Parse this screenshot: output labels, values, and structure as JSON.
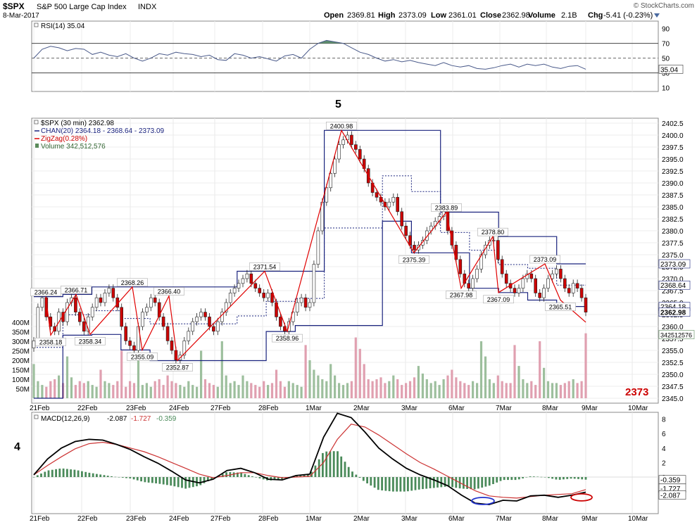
{
  "header": {
    "symbol": "$SPX",
    "name": "S&P 500 Large Cap Index",
    "exchange": "INDX",
    "date": "8-Mar-2017",
    "copyright": "© StockCharts.com",
    "quote": {
      "open_label": "Open",
      "open": "2369.81",
      "high_label": "High",
      "high": "2373.09",
      "low_label": "Low",
      "low": "2361.01",
      "close_label": "Close",
      "close": "2362.98",
      "volume_label": "Volume",
      "volume": "2.1B",
      "chg_label": "Chg",
      "chg": "-5.41 (-0.23%)"
    }
  },
  "colors": {
    "up_candle": "#ffffff",
    "down_candle": "#cc0000",
    "channel": "#1a237e",
    "zigzag": "#e00000",
    "volume_up": "#9dbf9d",
    "volume_down": "#e0a0b0",
    "rsi_line": "#4a5a8a",
    "rsi_fill": "#5f8f6f",
    "macd_line": "#000000",
    "signal_line": "#cc3333",
    "histogram": "#4a8a5a",
    "annotation_red": "#cc0000",
    "annotation_blue": "#2233cc"
  },
  "rsi": {
    "legend": "RSI(14) 35.04",
    "current": "35.04",
    "levels": [
      "90",
      "70",
      "50",
      "30",
      "10"
    ],
    "annotation": "5",
    "values": [
      50,
      62,
      66,
      64,
      60,
      63,
      62,
      55,
      58,
      54,
      52,
      56,
      50,
      46,
      50,
      56,
      54,
      58,
      56,
      55,
      52,
      54,
      48,
      47,
      56,
      54,
      50,
      52,
      49,
      46,
      53,
      55,
      50,
      62,
      70,
      74,
      72,
      70,
      64,
      58,
      55,
      50,
      46,
      48,
      45,
      47,
      44,
      42,
      40,
      44,
      40,
      38,
      40,
      36,
      35,
      37,
      40,
      42,
      38,
      42,
      40,
      42,
      38,
      36,
      39,
      40,
      35.04
    ]
  },
  "price_panel": {
    "legend": {
      "title": "$SPX (30 min) 2362.98",
      "chan": "CHAN(20) 2364.18 - 2368.64 - 2373.09",
      "zigzag": "ZigZag(0.28%)",
      "volume": "Volume 342,512,576"
    },
    "right_labels": {
      "channel_upper": "2373.09",
      "channel_mid": "2368.64",
      "channel_lower": "2364.18",
      "close": "2362.98",
      "volume": "342512576"
    },
    "big_label": "2373",
    "vol_ticks": [
      "400M",
      "350M",
      "300M",
      "250M",
      "200M",
      "150M",
      "100M",
      "50M"
    ]
  },
  "macd": {
    "legend_title": "MACD(12,26,9)",
    "legend_macd": "-2.087",
    "legend_signal": "-1.727",
    "legend_hist": "-0.359",
    "right_labels": [
      "-0.359",
      "-1.727",
      "-2.087"
    ],
    "ticks": [
      "8",
      "6",
      "4",
      "2",
      "0",
      "-2"
    ],
    "annotation": "4"
  },
  "x_labels": [
    "21Feb",
    "22Feb",
    "23Feb",
    "24Feb",
    "27Feb",
    "28Feb",
    "1Mar",
    "2Mar",
    "3Mar",
    "6Mar",
    "7Mar",
    "8Mar",
    "9Mar",
    "10Mar"
  ],
  "chart_data": {
    "type": "candlestick",
    "title": "$SPX (30 min) 2362.98",
    "xlabel": "",
    "ylabel": "",
    "ylim": [
      2345,
      2402.5
    ],
    "y_ticks": [
      2345.0,
      2347.5,
      2350.0,
      2352.5,
      2355.0,
      2357.5,
      2360.0,
      2362.5,
      2365.0,
      2367.5,
      2370.0,
      2372.5,
      2375.0,
      2377.5,
      2380.0,
      2382.5,
      2385.0,
      2387.5,
      2390.0,
      2392.5,
      2395.0,
      2397.5,
      2400.0,
      2402.5
    ],
    "close": [
      2357,
      2364,
      2366,
      2362,
      2360,
      2359,
      2363,
      2361,
      2365,
      2366,
      2363,
      2361,
      2359,
      2362,
      2364,
      2366,
      2365,
      2367,
      2368,
      2366,
      2364,
      2360,
      2357,
      2356,
      2355,
      2360,
      2363,
      2364,
      2366,
      2365,
      2362,
      2360,
      2357,
      2355,
      2353,
      2354,
      2357,
      2359,
      2361,
      2362,
      2363,
      2362,
      2360,
      2359,
      2361,
      2363,
      2365,
      2367,
      2368,
      2369,
      2370,
      2371,
      2369,
      2368,
      2367,
      2366,
      2367,
      2365,
      2362,
      2360,
      2359,
      2361,
      2363,
      2365,
      2366,
      2364,
      2365,
      2373,
      2380,
      2386,
      2389,
      2392,
      2395,
      2398,
      2399,
      2400,
      2398,
      2397,
      2395,
      2393,
      2390,
      2388,
      2387,
      2386,
      2385,
      2386,
      2387,
      2384,
      2381,
      2379,
      2377,
      2376,
      2377,
      2378,
      2380,
      2381,
      2382,
      2383,
      2384,
      2380,
      2377,
      2374,
      2371,
      2369,
      2368,
      2370,
      2372,
      2375,
      2377,
      2378,
      2378,
      2374,
      2371,
      2369,
      2368,
      2367,
      2368,
      2370,
      2371,
      2370,
      2367,
      2366,
      2368,
      2370,
      2371,
      2372,
      2370,
      2368,
      2367,
      2369,
      2368,
      2366,
      2362.98
    ],
    "channel": {
      "upper": [
        2366.24,
        2366.71,
        2368.26,
        2368.26,
        2368.26,
        2368.26,
        2368.26,
        2371.54,
        2371.54,
        2371.54,
        2400.98,
        2400.98,
        2400.98,
        2400.98,
        2383.89,
        2383.89,
        2378.8,
        2378.8,
        2373.09
      ],
      "lower": [
        2345,
        2358.18,
        2358.34,
        2355.09,
        2352.87,
        2352.87,
        2352.87,
        2352.87,
        2358.96,
        2360.2,
        2360.2,
        2360.2,
        2382.0,
        2375.39,
        2375.39,
        2367.98,
        2367.09,
        2365.51,
        2364.18
      ]
    },
    "zigzag_points": [
      {
        "label": "2366.24",
        "value": 2366.24
      },
      {
        "label": "2358.18",
        "value": 2358.18
      },
      {
        "label": "2366.71",
        "value": 2366.71
      },
      {
        "label": "2358.34",
        "value": 2358.34
      },
      {
        "label": "2368.26",
        "value": 2368.26
      },
      {
        "label": "2355.09",
        "value": 2355.09
      },
      {
        "label": "2366.40",
        "value": 2366.4
      },
      {
        "label": "2352.87",
        "value": 2352.87
      },
      {
        "label": "2371.54",
        "value": 2371.54
      },
      {
        "label": "2358.96",
        "value": 2358.96
      },
      {
        "label": "2400.98",
        "value": 2400.98
      },
      {
        "label": "2375.39",
        "value": 2375.39
      },
      {
        "label": "2383.89",
        "value": 2383.89
      },
      {
        "label": "2367.98",
        "value": 2367.98
      },
      {
        "label": "2378.80",
        "value": 2378.8
      },
      {
        "label": "2367.09",
        "value": 2367.09
      },
      {
        "label": "2373.09",
        "value": 2373.09
      },
      {
        "label": "2365.51",
        "value": 2365.51
      },
      {
        "label": "",
        "value": 2360.9
      }
    ],
    "volume_millions": [
      180,
      90,
      70,
      60,
      90,
      100,
      120,
      80,
      220,
      110,
      70,
      90,
      80,
      90,
      70,
      60,
      150,
      90,
      80,
      70,
      90,
      250,
      60,
      90,
      80,
      200,
      70,
      80,
      60,
      90,
      100,
      70,
      120,
      90,
      80,
      70,
      60,
      90,
      70,
      60,
      250,
      100,
      80,
      70,
      60,
      300,
      120,
      80,
      90,
      70,
      120,
      90,
      80,
      70,
      60,
      90,
      70,
      80,
      150,
      90,
      60,
      90,
      80,
      70,
      60,
      280,
      200,
      150,
      120,
      100,
      90,
      180,
      120,
      80,
      70,
      80,
      90,
      320,
      260,
      180,
      100,
      90,
      100,
      110,
      80,
      90,
      120,
      100,
      70,
      80,
      90,
      110,
      170,
      130,
      100,
      80,
      90,
      70,
      100,
      120,
      150,
      110,
      90,
      80,
      70,
      90,
      80,
      300,
      220,
      100,
      80,
      120,
      90,
      80,
      80,
      280,
      170,
      100,
      80,
      90,
      70,
      300,
      160,
      90,
      80,
      80,
      70,
      80,
      90,
      100,
      80,
      90,
      342
    ],
    "macd": [
      0.3,
      2.5,
      4,
      4.9,
      5.2,
      5.1,
      4.5,
      3.8,
      2.8,
      1.9,
      0.8,
      -0.4,
      -0.8,
      -0.3,
      0.9,
      1.2,
      0.6,
      -0.3,
      -0.4,
      0.2,
      0.4,
      5.5,
      8.8,
      8.2,
      6.2,
      4,
      2.5,
      1.2,
      0.3,
      -0.4,
      -1.2,
      -2.5,
      -3.6,
      -3.8,
      -3.2,
      -3.3,
      -2.6,
      -2.5,
      -2.8,
      -2.5,
      -2.087
    ],
    "signal": [
      0.3,
      1.6,
      2.8,
      3.9,
      4.6,
      4.8,
      4.5,
      4,
      3.5,
      2.8,
      2,
      1.2,
      0.4,
      -0.1,
      0.2,
      0.6,
      0.6,
      0.2,
      -0.1,
      0,
      0.1,
      2,
      5.2,
      7.3,
      6.9,
      5.8,
      4.5,
      3.2,
      2,
      1.1,
      0.1,
      -0.9,
      -1.9,
      -2.6,
      -2.8,
      -2.9,
      -2.7,
      -2.5,
      -2.4,
      -2.3,
      -1.727
    ]
  }
}
